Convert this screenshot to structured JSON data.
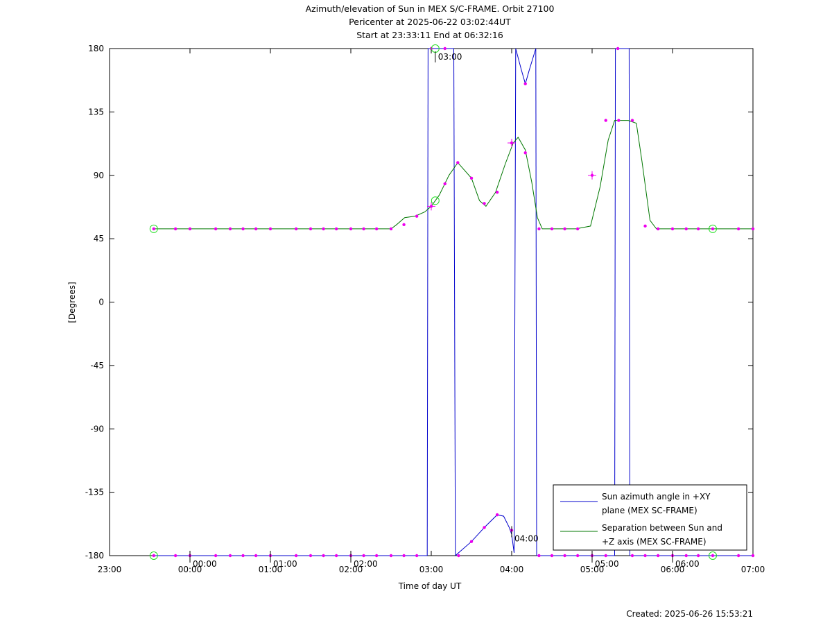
{
  "chart_data": {
    "type": "line",
    "title_lines": [
      "Azimuth/elevation of Sun in MEX S/C-FRAME.  Orbit 27100",
      "Pericenter at 2025-06-22 03:02:44UT",
      "Start at 23:33:11 End at 06:32:16"
    ],
    "xlabel": "Time of day UT",
    "ylabel": "[Degrees]",
    "created": "Created: 2025-06-26 15:53:21",
    "xlim": [
      0,
      8
    ],
    "ylim": [
      -180,
      180
    ],
    "x_ticks": [
      {
        "x": 0,
        "label": "23:00"
      },
      {
        "x": 1,
        "label": "00:00"
      },
      {
        "x": 2,
        "label": "01:00"
      },
      {
        "x": 3,
        "label": "02:00"
      },
      {
        "x": 4,
        "label": "03:00"
      },
      {
        "x": 5,
        "label": "04:00"
      },
      {
        "x": 6,
        "label": "05:00"
      },
      {
        "x": 7,
        "label": "06:00"
      },
      {
        "x": 8,
        "label": "07:00"
      }
    ],
    "y_ticks": [
      {
        "y": 180,
        "label": "180"
      },
      {
        "y": 135,
        "label": "135"
      },
      {
        "y": 90,
        "label": "90"
      },
      {
        "y": 45,
        "label": "45"
      },
      {
        "y": 0,
        "label": "0"
      },
      {
        "y": -45,
        "label": "-45"
      },
      {
        "y": -90,
        "label": "-90"
      },
      {
        "y": -135,
        "label": "-135"
      },
      {
        "y": -180,
        "label": "-180"
      }
    ],
    "hour_markers": [
      {
        "x": 1.0,
        "y": -180,
        "label": "00:00"
      },
      {
        "x": 2.0,
        "y": -180,
        "label": "01:00"
      },
      {
        "x": 3.0,
        "y": -180,
        "label": "02:00"
      },
      {
        "x": 4.05,
        "y": 180,
        "label": "03:00"
      },
      {
        "x": 5.0,
        "y": -162,
        "label": "04:00"
      },
      {
        "x": 6.0,
        "y": -180,
        "label": "05:00"
      },
      {
        "x": 7.0,
        "y": -180,
        "label": "06:00"
      }
    ],
    "legend": {
      "placement": "bottom-right",
      "entries": [
        {
          "lines": [
            "Sun azimuth angle in +XY",
            "plane (MEX SC-FRAME)"
          ],
          "color": "#0000cc"
        },
        {
          "lines": [
            "Separation between Sun and",
            "+Z axis (MEX SC-FRAME)"
          ],
          "color": "#007700"
        }
      ]
    },
    "series": [
      {
        "id": "azimuth",
        "color": "#0000cc",
        "segments": [
          [
            [
              0.55,
              -180
            ],
            [
              2.8,
              -180
            ],
            [
              3.3,
              -180
            ],
            [
              3.6,
              -180
            ],
            [
              3.83,
              -180
            ],
            [
              3.95,
              -180
            ]
          ],
          [
            [
              3.95,
              -180
            ],
            [
              3.96,
              180
            ]
          ],
          [
            [
              3.96,
              180
            ],
            [
              4.12,
              180
            ],
            [
              4.28,
              180
            ]
          ],
          [
            [
              4.28,
              180
            ],
            [
              4.3,
              -180
            ]
          ],
          [
            [
              4.3,
              -180
            ],
            [
              4.34,
              -178
            ],
            [
              4.5,
              -170
            ],
            [
              4.66,
              -160
            ],
            [
              4.82,
              -151
            ],
            [
              4.9,
              -152
            ],
            [
              4.97,
              -160
            ],
            [
              5.0,
              -165
            ]
          ],
          [
            [
              5.0,
              -165
            ],
            [
              5.03,
              -178
            ],
            [
              5.05,
              180
            ]
          ],
          [
            [
              5.05,
              180
            ],
            [
              5.12,
              165
            ],
            [
              5.17,
              155
            ],
            [
              5.22,
              165
            ],
            [
              5.3,
              180
            ]
          ],
          [
            [
              5.3,
              180
            ],
            [
              5.31,
              -180
            ]
          ],
          [
            [
              5.31,
              -180
            ],
            [
              6.0,
              -180
            ],
            [
              6.28,
              -180
            ]
          ],
          [
            [
              6.28,
              -180
            ],
            [
              6.29,
              180
            ]
          ],
          [
            [
              6.29,
              180
            ],
            [
              6.46,
              180
            ]
          ],
          [
            [
              6.46,
              180
            ],
            [
              6.47,
              -180
            ]
          ],
          [
            [
              6.47,
              -180
            ],
            [
              7.5,
              -180
            ],
            [
              8.0,
              -180
            ]
          ]
        ],
        "dots": [
          [
            0.55,
            -180
          ],
          [
            0.82,
            -180
          ],
          [
            1.0,
            -180
          ],
          [
            1.32,
            -180
          ],
          [
            1.5,
            -180
          ],
          [
            1.66,
            -180
          ],
          [
            1.82,
            -180
          ],
          [
            2.0,
            -180
          ],
          [
            2.32,
            -180
          ],
          [
            2.5,
            -180
          ],
          [
            2.66,
            -180
          ],
          [
            2.82,
            -180
          ],
          [
            3.0,
            -180
          ],
          [
            3.16,
            -180
          ],
          [
            3.32,
            -180
          ],
          [
            3.5,
            -180
          ],
          [
            3.66,
            -180
          ],
          [
            3.82,
            -180
          ],
          [
            4.0,
            180
          ],
          [
            4.17,
            180
          ],
          [
            4.34,
            -180
          ],
          [
            4.5,
            -170
          ],
          [
            4.66,
            -160
          ],
          [
            4.82,
            -151
          ],
          [
            5.0,
            -162
          ],
          [
            5.17,
            155
          ],
          [
            5.34,
            -180
          ],
          [
            5.5,
            -180
          ],
          [
            5.66,
            -180
          ],
          [
            5.82,
            -180
          ],
          [
            6.0,
            -180
          ],
          [
            6.17,
            -180
          ],
          [
            6.32,
            180
          ],
          [
            6.5,
            -180
          ],
          [
            6.66,
            -180
          ],
          [
            6.82,
            -180
          ],
          [
            7.0,
            -180
          ],
          [
            7.17,
            -180
          ],
          [
            7.32,
            -180
          ],
          [
            7.5,
            -180
          ],
          [
            7.82,
            -180
          ],
          [
            8.0,
            -180
          ]
        ],
        "circles": [
          [
            0.55,
            -180
          ],
          [
            4.05,
            180
          ],
          [
            7.5,
            -180
          ]
        ]
      },
      {
        "id": "separation",
        "color": "#007700",
        "segments": [
          [
            [
              0.55,
              52
            ],
            [
              3.0,
              52
            ],
            [
              3.5,
              52
            ],
            [
              3.57,
              55
            ],
            [
              3.67,
              60
            ],
            [
              3.8,
              61
            ],
            [
              3.92,
              64
            ],
            [
              4.0,
              68
            ],
            [
              4.1,
              76
            ],
            [
              4.22,
              90
            ],
            [
              4.33,
              99
            ],
            [
              4.5,
              88
            ],
            [
              4.6,
              72
            ],
            [
              4.68,
              68
            ],
            [
              4.8,
              78
            ],
            [
              4.92,
              98
            ],
            [
              5.02,
              113
            ],
            [
              5.08,
              117
            ],
            [
              5.17,
              108
            ],
            [
              5.25,
              85
            ],
            [
              5.32,
              60
            ],
            [
              5.38,
              52
            ],
            [
              5.5,
              52
            ],
            [
              5.8,
              52
            ],
            [
              5.98,
              54
            ],
            [
              6.1,
              82
            ],
            [
              6.2,
              115
            ],
            [
              6.28,
              129
            ],
            [
              6.45,
              129
            ],
            [
              6.55,
              127
            ],
            [
              6.62,
              100
            ],
            [
              6.72,
              58
            ],
            [
              6.8,
              52
            ],
            [
              7.0,
              52
            ],
            [
              7.5,
              52
            ],
            [
              8.0,
              52
            ]
          ]
        ],
        "dots": [
          [
            0.55,
            52
          ],
          [
            0.82,
            52
          ],
          [
            1.0,
            52
          ],
          [
            1.32,
            52
          ],
          [
            1.5,
            52
          ],
          [
            1.66,
            52
          ],
          [
            1.82,
            52
          ],
          [
            2.0,
            52
          ],
          [
            2.32,
            52
          ],
          [
            2.5,
            52
          ],
          [
            2.66,
            52
          ],
          [
            2.82,
            52
          ],
          [
            3.0,
            52
          ],
          [
            3.16,
            52
          ],
          [
            3.32,
            52
          ],
          [
            3.5,
            52
          ],
          [
            3.66,
            55
          ],
          [
            3.82,
            61
          ],
          [
            4.0,
            68
          ],
          [
            4.17,
            84
          ],
          [
            4.33,
            99
          ],
          [
            4.5,
            88
          ],
          [
            4.66,
            70
          ],
          [
            4.82,
            78
          ],
          [
            5.0,
            113
          ],
          [
            5.17,
            106
          ],
          [
            5.34,
            52
          ],
          [
            5.5,
            52
          ],
          [
            5.66,
            52
          ],
          [
            5.82,
            52
          ],
          [
            6.0,
            90
          ],
          [
            6.17,
            129
          ],
          [
            6.33,
            129
          ],
          [
            6.5,
            129
          ],
          [
            6.66,
            54
          ],
          [
            6.82,
            52
          ],
          [
            7.0,
            52
          ],
          [
            7.17,
            52
          ],
          [
            7.32,
            52
          ],
          [
            7.5,
            52
          ],
          [
            7.82,
            52
          ],
          [
            8.0,
            52
          ]
        ],
        "circles": [
          [
            0.55,
            52
          ],
          [
            4.05,
            72
          ],
          [
            7.5,
            52
          ]
        ],
        "crosses": [
          [
            4.0,
            68
          ],
          [
            5.0,
            113
          ],
          [
            6.0,
            90
          ]
        ]
      }
    ]
  }
}
